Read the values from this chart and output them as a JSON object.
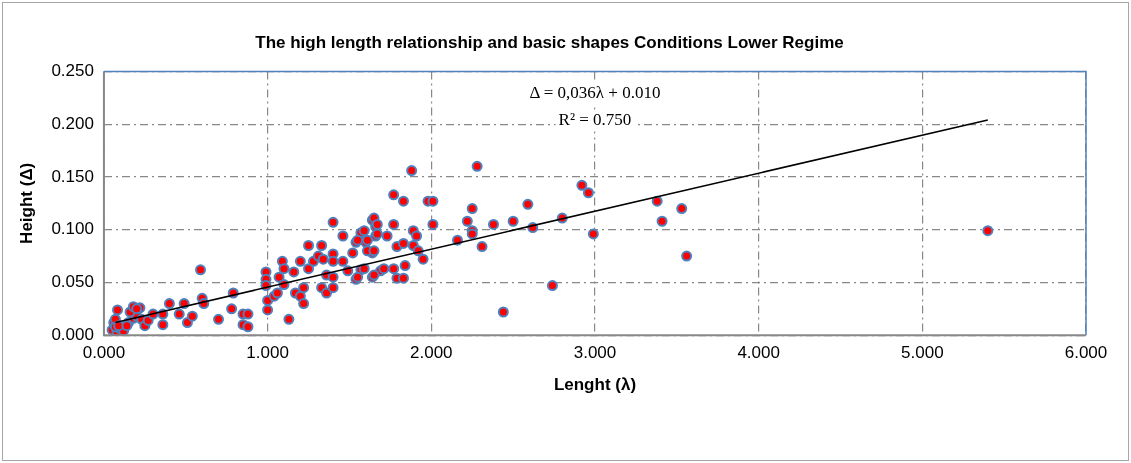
{
  "chart_data": {
    "type": "scatter",
    "title": "The high length relationship and basic shapes Conditions Lower Regime",
    "xlabel": "Lenght (λ)",
    "ylabel": "Height (Δ)",
    "annotations": [
      "Δ = 0,036λ + 0.010",
      "R² = 0.750"
    ],
    "xlim": [
      0,
      6
    ],
    "xticks": [
      {
        "value": 0,
        "label": "0.000"
      },
      {
        "value": 1,
        "label": "1.000"
      },
      {
        "value": 2,
        "label": "2.000"
      },
      {
        "value": 3,
        "label": "3.000"
      },
      {
        "value": 4,
        "label": "4.000"
      },
      {
        "value": 5,
        "label": "5.000"
      },
      {
        "value": 6,
        "label": "6.000"
      }
    ],
    "ylim": [
      0,
      0.25
    ],
    "yticks": [
      {
        "value": 0,
        "label": "0.000"
      },
      {
        "value": 0.05,
        "label": "0.050"
      },
      {
        "value": 0.1,
        "label": "0.100"
      },
      {
        "value": 0.15,
        "label": "0.150"
      },
      {
        "value": 0.2,
        "label": "0.200"
      },
      {
        "value": 0.25,
        "label": "0.250"
      }
    ],
    "grid": true,
    "marker": "circle",
    "legend": false,
    "series": [
      {
        "type": "scatter",
        "color": "#ff0000",
        "x": [
          0.05,
          0.06,
          0.08,
          0.1,
          0.12,
          0.07,
          0.15,
          0.18,
          0.22,
          0.2,
          0.07,
          0.083,
          0.09,
          0.14,
          0.16,
          0.18,
          0.2,
          0.23,
          0.25,
          0.27,
          0.3,
          0.36,
          0.36,
          0.4,
          0.46,
          0.49,
          0.51,
          0.54,
          0.59,
          0.6,
          0.61,
          0.7,
          0.78,
          0.79,
          0.85,
          0.85,
          0.88,
          0.88,
          0.99,
          0.99,
          0.99,
          1.0,
          1.0,
          1.04,
          1.06,
          1.07,
          1.09,
          1.1,
          1.1,
          1.13,
          1.16,
          1.17,
          1.2,
          1.2,
          1.22,
          1.22,
          1.25,
          1.25,
          1.28,
          1.31,
          1.33,
          1.33,
          1.34,
          1.36,
          1.36,
          1.4,
          1.4,
          1.4,
          1.4,
          1.4,
          1.46,
          1.46,
          1.49,
          1.52,
          1.54,
          1.54,
          1.57,
          1.57,
          1.6,
          1.64,
          1.64,
          1.64,
          1.66,
          1.66,
          1.69,
          1.55,
          1.55,
          1.59,
          1.59,
          1.61,
          1.61,
          1.65,
          1.65,
          1.65,
          1.67,
          1.67,
          1.71,
          1.73,
          1.77,
          1.77,
          1.77,
          1.79,
          1.79,
          1.83,
          1.83,
          1.83,
          1.84,
          1.88,
          1.89,
          1.89,
          1.91,
          1.92,
          1.95,
          1.98,
          2.01,
          2.01,
          2.16,
          2.22,
          2.25,
          2.25,
          2.25,
          2.28,
          2.31,
          2.38,
          2.44,
          2.5,
          2.59,
          2.62,
          2.74,
          2.8,
          2.92,
          2.96,
          2.99,
          3.38,
          3.41,
          3.53,
          3.56,
          5.4
        ],
        "values": [
          0.005,
          0.012,
          0.003,
          0.006,
          0.004,
          0.008,
          0.012,
          0.016,
          0.026,
          0.018,
          0.015,
          0.024,
          0.009,
          0.009,
          0.022,
          0.027,
          0.025,
          0.015,
          0.009,
          0.014,
          0.02,
          0.02,
          0.01,
          0.03,
          0.02,
          0.03,
          0.012,
          0.018,
          0.062,
          0.035,
          0.03,
          0.015,
          0.025,
          0.04,
          0.02,
          0.01,
          0.02,
          0.008,
          0.06,
          0.053,
          0.047,
          0.033,
          0.024,
          0.037,
          0.04,
          0.055,
          0.07,
          0.063,
          0.048,
          0.015,
          0.06,
          0.04,
          0.037,
          0.07,
          0.045,
          0.03,
          0.085,
          0.063,
          0.07,
          0.075,
          0.045,
          0.085,
          0.072,
          0.057,
          0.04,
          0.107,
          0.077,
          0.07,
          0.055,
          0.045,
          0.094,
          0.07,
          0.061,
          0.078,
          0.088,
          0.053,
          0.097,
          0.062,
          0.088,
          0.109,
          0.055,
          0.078,
          0.103,
          0.094,
          0.061,
          0.09,
          0.055,
          0.099,
          0.063,
          0.09,
          0.08,
          0.111,
          0.08,
          0.057,
          0.105,
          0.096,
          0.063,
          0.094,
          0.133,
          0.105,
          0.063,
          0.084,
          0.054,
          0.127,
          0.087,
          0.054,
          0.066,
          0.156,
          0.099,
          0.085,
          0.094,
          0.08,
          0.072,
          0.127,
          0.127,
          0.105,
          0.09,
          0.108,
          0.12,
          0.099,
          0.096,
          0.16,
          0.084,
          0.105,
          0.022,
          0.108,
          0.124,
          0.102,
          0.047,
          0.111,
          0.142,
          0.135,
          0.096,
          0.127,
          0.108,
          0.12,
          0.075,
          0.099
        ]
      },
      {
        "type": "line",
        "marker": "none",
        "color": "#000000",
        "x": [
          0.07,
          5.4
        ],
        "values": [
          0.012,
          0.204
        ]
      }
    ]
  }
}
